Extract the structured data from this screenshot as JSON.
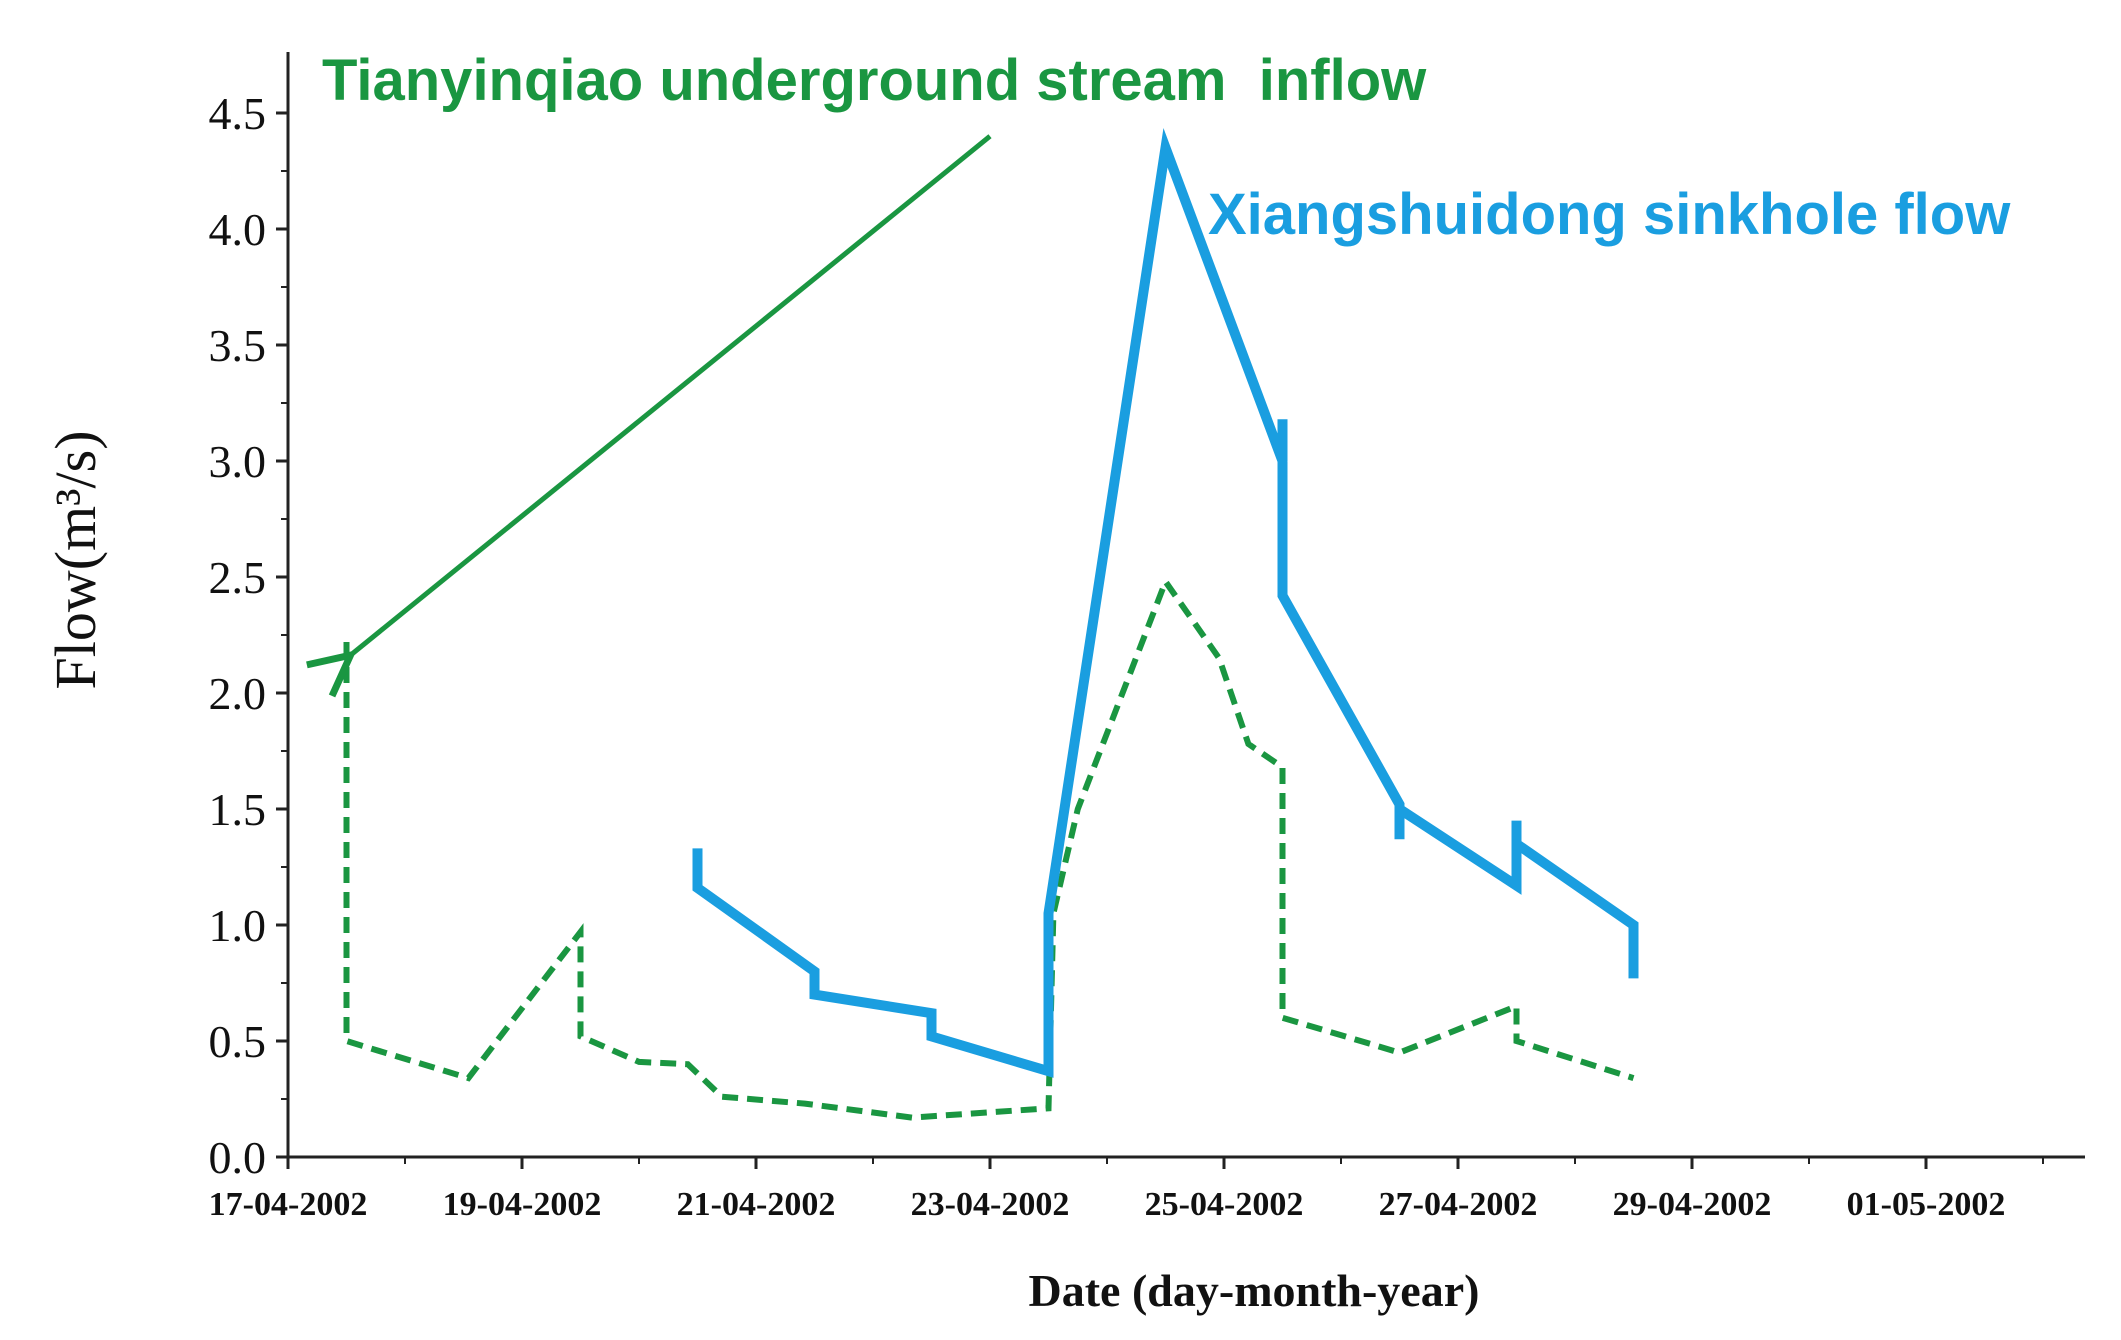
{
  "chart_data": {
    "type": "line",
    "xlabel": "Date (day-month-year)",
    "ylabel": "Flow(m³/s)",
    "ylim": [
      0,
      4.7
    ],
    "yticks": [
      0.0,
      0.5,
      1.0,
      1.5,
      2.0,
      2.5,
      3.0,
      3.5,
      4.0,
      4.5
    ],
    "ytick_labels": [
      "0.0",
      "0.5",
      "1.0",
      "1.5",
      "2.0",
      "2.5",
      "3.0",
      "3.5",
      "4.0",
      "4.5"
    ],
    "x_start": "2002-04-17",
    "x_end": "2002-05-02",
    "xticks": [
      "2002-04-17",
      "2002-04-19",
      "2002-04-21",
      "2002-04-23",
      "2002-04-25",
      "2002-04-27",
      "2002-04-29",
      "2002-05-01"
    ],
    "xtick_labels": [
      "17-04-2002",
      "19-04-2002",
      "21-04-2002",
      "23-04-2002",
      "25-04-2002",
      "27-04-2002",
      "29-04-2002",
      "01-05-2002"
    ],
    "grid": false,
    "series": [
      {
        "name": "Tianyinqiao underground stream inflow",
        "color": "#1a9641",
        "style": "dashed",
        "points": [
          [
            "2002-04-17 12:00",
            2.22
          ],
          [
            "2002-04-17 12:00",
            0.5
          ],
          [
            "2002-04-18 13:00",
            0.34
          ],
          [
            "2002-04-19 12:00",
            0.97
          ],
          [
            "2002-04-19 12:00",
            0.52
          ],
          [
            "2002-04-20 00:00",
            0.41
          ],
          [
            "2002-04-20 10:00",
            0.4
          ],
          [
            "2002-04-20 17:00",
            0.26
          ],
          [
            "2002-04-21 10:00",
            0.23
          ],
          [
            "2002-04-22 08:00",
            0.17
          ],
          [
            "2002-04-23 12:00",
            0.21
          ],
          [
            "2002-04-23 13:00",
            1.05
          ],
          [
            "2002-04-23 18:00",
            1.5
          ],
          [
            "2002-04-24 12:00",
            2.48
          ],
          [
            "2002-04-24 23:00",
            2.15
          ],
          [
            "2002-04-25 05:00",
            1.78
          ],
          [
            "2002-04-25 12:00",
            1.68
          ],
          [
            "2002-04-25 12:00",
            0.6
          ],
          [
            "2002-04-26 12:00",
            0.45
          ],
          [
            "2002-04-27 12:00",
            0.65
          ],
          [
            "2002-04-27 12:00",
            0.5
          ],
          [
            "2002-04-28 12:00",
            0.34
          ]
        ]
      },
      {
        "name": "Xiangshuidong sinkhole flow",
        "color": "#1a9ee0",
        "style": "solid",
        "points": [
          [
            "2002-04-20 12:00",
            1.33
          ],
          [
            "2002-04-20 12:00",
            1.16
          ],
          [
            "2002-04-21 12:00",
            0.8
          ],
          [
            "2002-04-21 12:00",
            0.7
          ],
          [
            "2002-04-22 12:00",
            0.62
          ],
          [
            "2002-04-22 12:00",
            0.52
          ],
          [
            "2002-04-23 12:00",
            0.37
          ],
          [
            "2002-04-23 12:00",
            1.05
          ],
          [
            "2002-04-24 12:00",
            4.35
          ],
          [
            "2002-04-25 12:00",
            3.0
          ],
          [
            "2002-04-25 12:00",
            3.18
          ],
          [
            "2002-04-25 12:00",
            2.42
          ],
          [
            "2002-04-26 12:00",
            1.52
          ],
          [
            "2002-04-26 12:00",
            1.37
          ],
          [
            "2002-04-26 12:00",
            1.5
          ],
          [
            "2002-04-27 12:00",
            1.17
          ],
          [
            "2002-04-27 12:00",
            1.45
          ],
          [
            "2002-04-27 12:00",
            1.35
          ],
          [
            "2002-04-28 12:00",
            1.0
          ],
          [
            "2002-04-28 12:00",
            0.77
          ]
        ]
      }
    ],
    "annotations": [
      {
        "text": "Tianyinqiao underground stream  inflow",
        "color": "#1a9641",
        "arrow_from": [
          "2002-04-23 00:00",
          4.4
        ],
        "arrow_to": [
          "2002-04-17 12:00",
          2.15
        ]
      },
      {
        "text": "Xiangshuidong sinkhole flow",
        "color": "#1a9ee0"
      }
    ]
  }
}
